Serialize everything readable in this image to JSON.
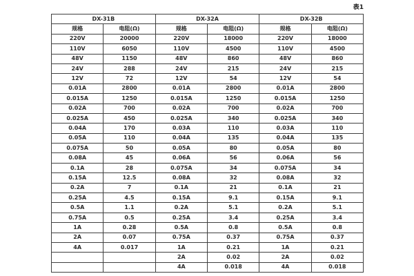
{
  "page": {
    "caption": "表1"
  },
  "table": {
    "groups": [
      {
        "name": "DX-31B",
        "columns": [
          "规格",
          "电阻(Ω)"
        ]
      },
      {
        "name": "DX-32A",
        "columns": [
          "规格",
          "电阻(Ω)"
        ]
      },
      {
        "name": "DX-32B",
        "columns": [
          "规格",
          "电阻(Ω)"
        ]
      }
    ],
    "rows": [
      [
        "220V",
        "20000",
        "220V",
        "18000",
        "220V",
        "18000"
      ],
      [
        "110V",
        "6050",
        "110V",
        "4500",
        "110V",
        "4500"
      ],
      [
        "48V",
        "1150",
        "48V",
        "860",
        "48V",
        "860"
      ],
      [
        "24V",
        "288",
        "24V",
        "215",
        "24V",
        "215"
      ],
      [
        "12V",
        "72",
        "12V",
        "54",
        "12V",
        "54"
      ],
      [
        "0.01A",
        "2800",
        "0.01A",
        "2800",
        "0.01A",
        "2800"
      ],
      [
        "0.015A",
        "1250",
        "0.015A",
        "1250",
        "0.015A",
        "1250"
      ],
      [
        "0.02A",
        "700",
        "0.02A",
        "700",
        "0.02A",
        "700"
      ],
      [
        "0.025A",
        "450",
        "0.025A",
        "340",
        "0.025A",
        "340"
      ],
      [
        "0.04A",
        "170",
        "0.03A",
        "110",
        "0.03A",
        "110"
      ],
      [
        "0.05A",
        "110",
        "0.04A",
        "135",
        "0.04A",
        "135"
      ],
      [
        "0.075A",
        "50",
        "0.05A",
        "80",
        "0.05A",
        "80"
      ],
      [
        "0.08A",
        "45",
        "0.06A",
        "56",
        "0.06A",
        "56"
      ],
      [
        "0.1A",
        "28",
        "0.075A",
        "34",
        "0.075A",
        "34"
      ],
      [
        "0.15A",
        "12.5",
        "0.08A",
        "32",
        "0.08A",
        "32"
      ],
      [
        "0.2A",
        "7",
        "0.1A",
        "21",
        "0.1A",
        "21"
      ],
      [
        "0.25A",
        "4.5",
        "0.15A",
        "9.1",
        "0.15A",
        "9.1"
      ],
      [
        "0.5A",
        "1.1",
        "0.2A",
        "5.1",
        "0.2A",
        "5.1"
      ],
      [
        "0.75A",
        "0.5",
        "0.25A",
        "3.4",
        "0.25A",
        "3.4"
      ],
      [
        "1A",
        "0.28",
        "0.5A",
        "0.8",
        "0.5A",
        "0.8"
      ],
      [
        "2A",
        "0.07",
        "0.75A",
        "0.37",
        "0.75A",
        "0.37"
      ],
      [
        "4A",
        "0.017",
        "1A",
        "0.21",
        "1A",
        "0.21"
      ],
      [
        "",
        "",
        "2A",
        "0.02",
        "2A",
        "0.02"
      ],
      [
        "",
        "",
        "4A",
        "0.018",
        "4A",
        "0.018"
      ]
    ]
  }
}
